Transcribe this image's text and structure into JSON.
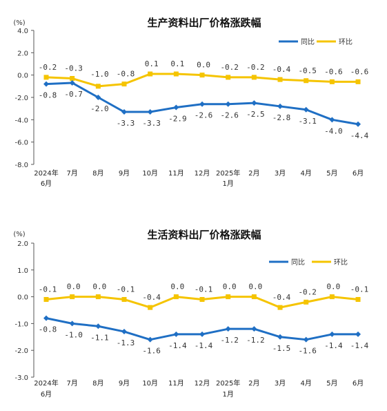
{
  "chart_data": [
    {
      "type": "line",
      "title": "生产资料出厂价格涨跌幅",
      "unit": "(%)",
      "ylim": [
        -8.0,
        4.0
      ],
      "yticks": [
        "4.0",
        "2.0",
        "0.0",
        "-2.0",
        "-4.0",
        "-6.0",
        "-8.0"
      ],
      "categories": [
        "2024年|6月",
        "7月",
        "8月",
        "9月",
        "10月",
        "11月",
        "12月",
        "2025年|1月",
        "2月",
        "3月",
        "4月",
        "5月",
        "6月"
      ],
      "legend_position": "top-right",
      "series": [
        {
          "name": "同比",
          "color": "#1F6FC4",
          "marker": "diamond",
          "values": [
            -0.8,
            -0.7,
            -2.0,
            -3.3,
            -3.3,
            -2.9,
            -2.6,
            -2.6,
            -2.5,
            -2.8,
            -3.1,
            -4.0,
            -4.4
          ],
          "labels": [
            "-0.8",
            "-0.7",
            "-2.0",
            "-3.3",
            "-3.3",
            "-2.9",
            "-2.6",
            "-2.6",
            "-2.5",
            "-2.8",
            "-3.1",
            "-4.0",
            "-4.4"
          ]
        },
        {
          "name": "环比",
          "color": "#F5C400",
          "marker": "square",
          "values": [
            -0.2,
            -0.3,
            -1.0,
            -0.8,
            0.1,
            0.1,
            0.0,
            -0.2,
            -0.2,
            -0.4,
            -0.5,
            -0.6,
            -0.6
          ],
          "labels": [
            "-0.2",
            "-0.3",
            "-1.0",
            "-0.8",
            "0.1",
            "0.1",
            "0.0",
            "-0.2",
            "-0.2",
            "-0.4",
            "-0.5",
            "-0.6",
            "-0.6"
          ]
        }
      ]
    },
    {
      "type": "line",
      "title": "生活资料出厂价格涨跌幅",
      "unit": "(%)",
      "ylim": [
        -3.0,
        2.0
      ],
      "yticks": [
        "2.0",
        "1.0",
        "0.0",
        "-1.0",
        "-2.0",
        "-3.0"
      ],
      "categories": [
        "2024年|6月",
        "7月",
        "8月",
        "9月",
        "10月",
        "11月",
        "12月",
        "2025年|1月",
        "2月",
        "3月",
        "4月",
        "5月",
        "6月"
      ],
      "legend_position": "top-right",
      "series": [
        {
          "name": "同比",
          "color": "#1F6FC4",
          "marker": "diamond",
          "values": [
            -0.8,
            -1.0,
            -1.1,
            -1.3,
            -1.6,
            -1.4,
            -1.4,
            -1.2,
            -1.2,
            -1.5,
            -1.6,
            -1.4,
            -1.4
          ],
          "labels": [
            "-0.8",
            "-1.0",
            "-1.1",
            "-1.3",
            "-1.6",
            "-1.4",
            "-1.4",
            "-1.2",
            "-1.2",
            "-1.5",
            "-1.6",
            "-1.4",
            "-1.4"
          ]
        },
        {
          "name": "环比",
          "color": "#F5C400",
          "marker": "square",
          "values": [
            -0.1,
            0.0,
            0.0,
            -0.1,
            -0.4,
            0.0,
            -0.1,
            0.0,
            0.0,
            -0.4,
            -0.2,
            0.0,
            -0.1
          ],
          "labels": [
            "-0.1",
            "0.0",
            "0.0",
            "-0.1",
            "-0.4",
            "0.0",
            "-0.1",
            "0.0",
            "0.0",
            "-0.4",
            "-0.2",
            "0.0",
            "-0.1"
          ]
        }
      ]
    }
  ]
}
